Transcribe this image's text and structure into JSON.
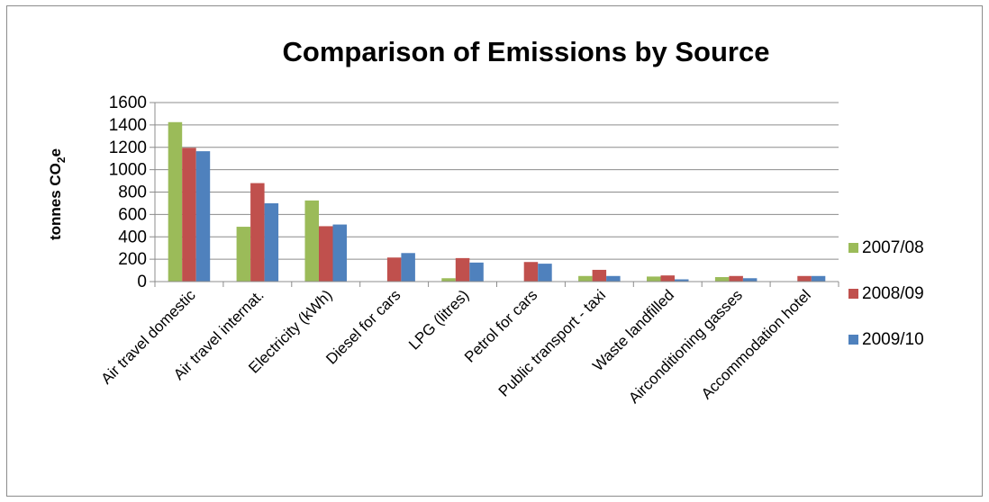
{
  "chart_data": {
    "type": "bar",
    "title": "Comparison of Emissions by Source",
    "ylabel_main": "tonnes CO",
    "ylabel_sub": "2",
    "ylabel_tail": "e",
    "ylim": [
      0,
      1600
    ],
    "yticks": [
      "0",
      "200",
      "400",
      "600",
      "800",
      "1000",
      "1200",
      "1400",
      "1600"
    ],
    "grid": true,
    "legend_position": "right",
    "categories": [
      "Air travel domestic",
      "Air travel internat.",
      "Electricity (kWh)",
      "Diesel for cars",
      "LPG (litres)",
      "Petrol for cars",
      "Public transport - taxi",
      "Waste landfilled",
      "Airconditioning gasses",
      "Accommodation hotel"
    ],
    "series": [
      {
        "name": "2007/08",
        "color": "#9bbb59",
        "values": [
          1425,
          490,
          725,
          0,
          30,
          0,
          50,
          45,
          40,
          0
        ]
      },
      {
        "name": "2008/09",
        "color": "#c0504d",
        "values": [
          1195,
          880,
          495,
          215,
          210,
          175,
          105,
          55,
          50,
          50
        ]
      },
      {
        "name": "2009/10",
        "color": "#4f81bd",
        "values": [
          1165,
          700,
          510,
          255,
          170,
          160,
          50,
          20,
          30,
          50
        ]
      }
    ]
  }
}
